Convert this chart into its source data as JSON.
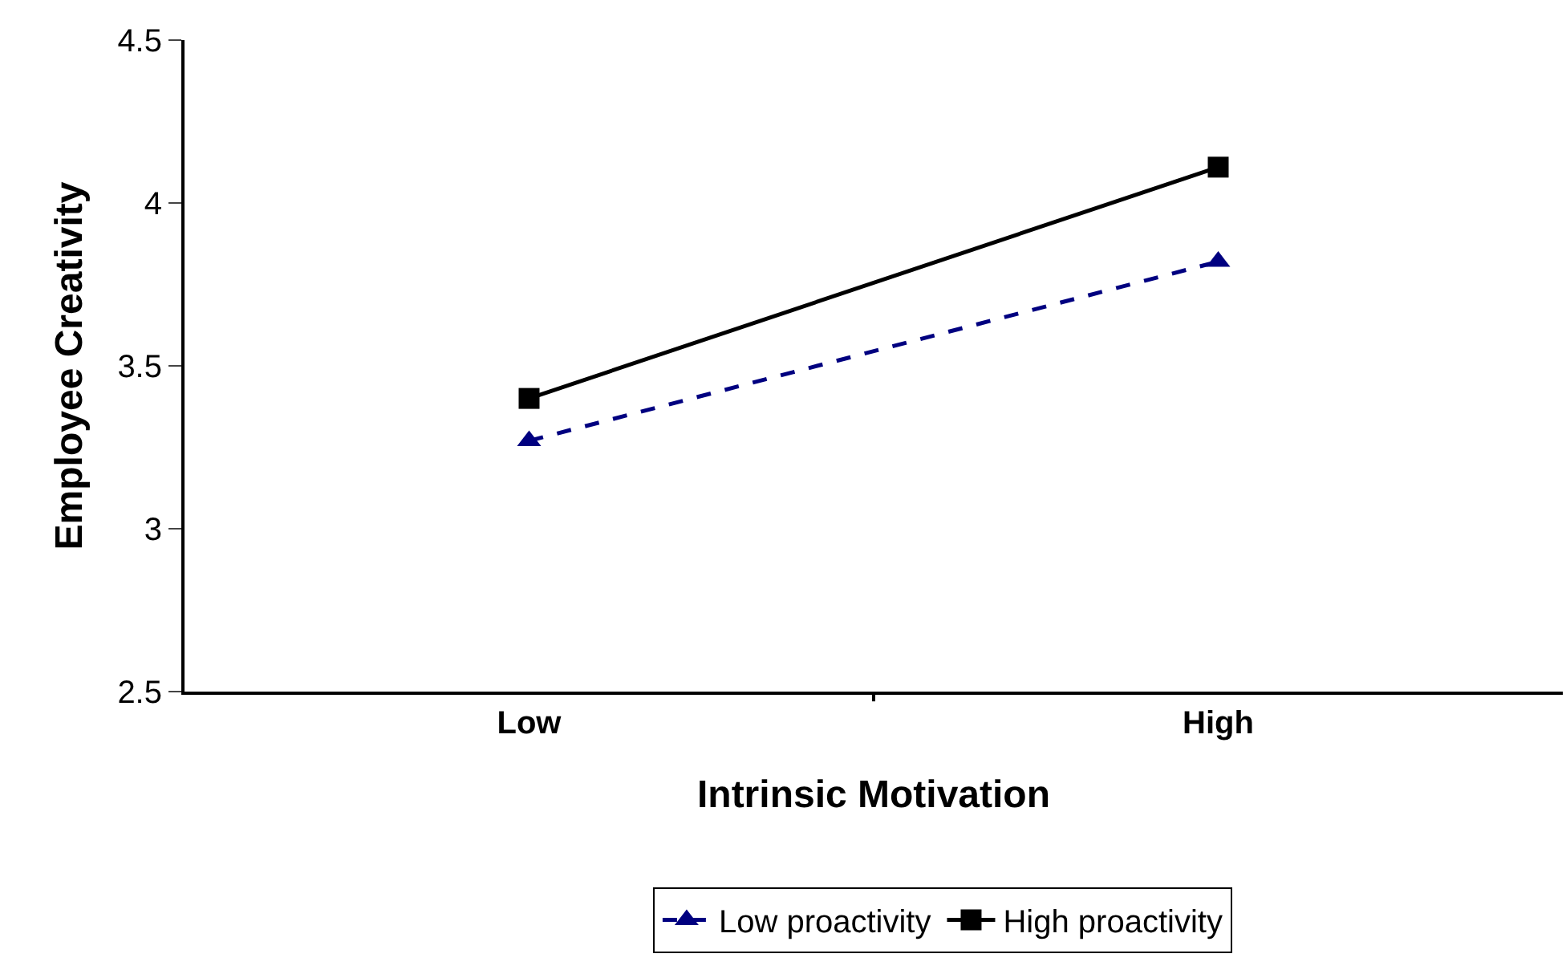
{
  "chart_data": {
    "type": "line",
    "xlabel": "Intrinsic Motivation",
    "ylabel": "Employee Creativity",
    "categories": [
      "Low",
      "High"
    ],
    "series": [
      {
        "name": "Low proactivity",
        "color": "#000080",
        "values": [
          3.27,
          3.82
        ],
        "marker": "triangle",
        "line_style": "dashed"
      },
      {
        "name": "High proactivity",
        "color": "#000000",
        "values": [
          3.4,
          4.11
        ],
        "marker": "square",
        "line_style": "solid"
      }
    ],
    "ylim": [
      2.5,
      4.5
    ],
    "yticks": [
      2.5,
      3,
      3.5,
      4,
      4.5
    ],
    "legend": "bottom"
  }
}
